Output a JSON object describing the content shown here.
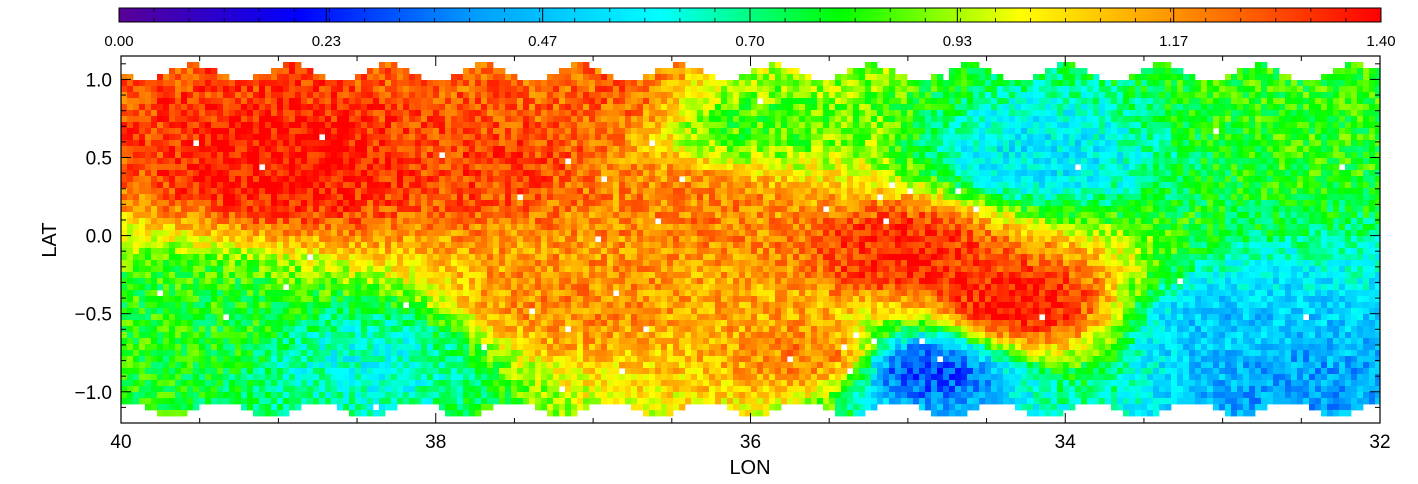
{
  "chart_data": {
    "type": "heatmap",
    "xlabel": "LON",
    "ylabel": "LAT",
    "xlim": [
      40,
      32
    ],
    "ylim": [
      -1.2,
      1.15
    ],
    "x_ticks": [
      40,
      38,
      36,
      34,
      32
    ],
    "x_tick_labels": [
      "40",
      "38",
      "36",
      "34",
      "32"
    ],
    "y_ticks": [
      1.0,
      0.5,
      0.0,
      -0.5,
      -1.0
    ],
    "y_tick_labels": [
      "1.0",
      "0.5",
      "0.0",
      "−0.5",
      "−1.0"
    ],
    "colorbar": {
      "min": 0.0,
      "max": 1.4,
      "tick_values": [
        0.0,
        0.23,
        0.47,
        0.7,
        0.93,
        1.17,
        1.4
      ],
      "tick_labels": [
        "0.00",
        "0.23",
        "0.47",
        "0.70",
        "0.93",
        "1.17",
        "1.40"
      ],
      "colormap": "rainbow",
      "colors": [
        "#5a0096",
        "#0000ff",
        "#00a0ff",
        "#00ffff",
        "#00ff00",
        "#ffff00",
        "#ff8000",
        "#ff0000"
      ]
    },
    "grid": false,
    "value_regions": [
      {
        "lon": 38.9,
        "lat": 0.45,
        "value": 1.38,
        "desc": "peak"
      },
      {
        "lon": 37.6,
        "lat": 0.5,
        "value": 1.3
      },
      {
        "lon": 37.0,
        "lat": 0.9,
        "value": 1.25
      },
      {
        "lon": 36.3,
        "lat": 0.2,
        "value": 1.2
      },
      {
        "lon": 37.2,
        "lat": -0.4,
        "value": 1.18
      },
      {
        "lon": 35.0,
        "lat": -0.1,
        "value": 1.35
      },
      {
        "lon": 34.3,
        "lat": -0.45,
        "value": 1.38
      },
      {
        "lon": 35.6,
        "lat": -0.75,
        "value": 1.2
      },
      {
        "lon": 36.0,
        "lat": 0.7,
        "value": 0.85
      },
      {
        "lon": 34.2,
        "lat": 0.5,
        "value": 0.55
      },
      {
        "lon": 34.9,
        "lat": -0.85,
        "value": 0.28
      },
      {
        "lon": 33.0,
        "lat": -0.6,
        "value": 0.48
      },
      {
        "lon": 32.6,
        "lat": -0.95,
        "value": 0.42
      },
      {
        "lon": 38.4,
        "lat": -0.8,
        "value": 0.62
      },
      {
        "lon": 39.5,
        "lat": -0.5,
        "value": 0.8
      },
      {
        "lon": 32.5,
        "lat": 0.8,
        "value": 0.82
      }
    ]
  }
}
